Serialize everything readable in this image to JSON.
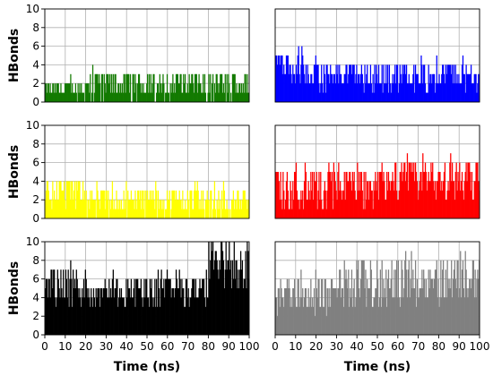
{
  "chart_data": [
    {
      "type": "bar",
      "panel": "top-left",
      "color": "#137a00",
      "ylabel": "HBonds",
      "xlabel": "",
      "xlim": [
        0,
        100
      ],
      "ylim": [
        0,
        10
      ],
      "yticks": [
        "0",
        "2",
        "4",
        "6",
        "8",
        "10"
      ],
      "xticks": [],
      "grid": true,
      "segments": [
        {
          "x_start": 0,
          "x_end": 20,
          "base": 1,
          "peak": 2
        },
        {
          "x_start": 20,
          "x_end": 100,
          "base": 1,
          "peak": 3
        }
      ]
    },
    {
      "type": "bar",
      "panel": "top-right",
      "color": "#0000ff",
      "ylabel": "",
      "xlabel": "",
      "xlim": [
        0,
        100
      ],
      "ylim": [
        0,
        10
      ],
      "yticks": [],
      "xticks": [],
      "grid": true,
      "segments": [
        {
          "x_start": 0,
          "x_end": 15,
          "base": 3,
          "peak": 6
        },
        {
          "x_start": 15,
          "x_end": 60,
          "base": 2,
          "peak": 4
        },
        {
          "x_start": 60,
          "x_end": 100,
          "base": 2,
          "peak": 4
        }
      ]
    },
    {
      "type": "bar",
      "panel": "middle-left",
      "color": "#ffff00",
      "ylabel": "HBonds",
      "xlabel": "",
      "xlim": [
        0,
        100
      ],
      "ylim": [
        0,
        10
      ],
      "yticks": [
        "0",
        "2",
        "4",
        "6",
        "8",
        "10"
      ],
      "xticks": [],
      "grid": true,
      "segments": [
        {
          "x_start": 0,
          "x_end": 20,
          "base": 2,
          "peak": 4
        },
        {
          "x_start": 20,
          "x_end": 80,
          "base": 1,
          "peak": 3
        },
        {
          "x_start": 80,
          "x_end": 100,
          "base": 1,
          "peak": 3
        }
      ]
    },
    {
      "type": "bar",
      "panel": "middle-right",
      "color": "#ff0000",
      "ylabel": "",
      "xlabel": "",
      "xlim": [
        0,
        100
      ],
      "ylim": [
        0,
        10
      ],
      "yticks": [],
      "xticks": [],
      "grid": true,
      "segments": [
        {
          "x_start": 0,
          "x_end": 50,
          "base": 2,
          "peak": 5
        },
        {
          "x_start": 50,
          "x_end": 100,
          "base": 3,
          "peak": 6
        }
      ]
    },
    {
      "type": "bar",
      "panel": "bottom-left",
      "color": "#000000",
      "ylabel": "HBonds",
      "xlabel": "Time (ns)",
      "xlim": [
        0,
        100
      ],
      "ylim": [
        0,
        10
      ],
      "yticks": [
        "0",
        "2",
        "4",
        "6",
        "8",
        "10"
      ],
      "xticks": [
        "0",
        "10",
        "20",
        "30",
        "40",
        "50",
        "60",
        "70",
        "80",
        "90",
        "100"
      ],
      "grid": true,
      "segments": [
        {
          "x_start": 0,
          "x_end": 20,
          "base": 4,
          "peak": 7
        },
        {
          "x_start": 20,
          "x_end": 80,
          "base": 4,
          "peak": 6
        },
        {
          "x_start": 80,
          "x_end": 100,
          "base": 6,
          "peak": 10
        }
      ]
    },
    {
      "type": "bar",
      "panel": "bottom-right",
      "color": "#808080",
      "ylabel": "",
      "xlabel": "Time (ns)",
      "xlim": [
        0,
        100
      ],
      "ylim": [
        0,
        10
      ],
      "yticks": [],
      "xticks": [
        "0",
        "10",
        "20",
        "30",
        "40",
        "50",
        "60",
        "70",
        "80",
        "90",
        "100"
      ],
      "grid": true,
      "segments": [
        {
          "x_start": 0,
          "x_end": 30,
          "base": 3,
          "peak": 6
        },
        {
          "x_start": 30,
          "x_end": 100,
          "base": 4,
          "peak": 8
        }
      ]
    }
  ]
}
